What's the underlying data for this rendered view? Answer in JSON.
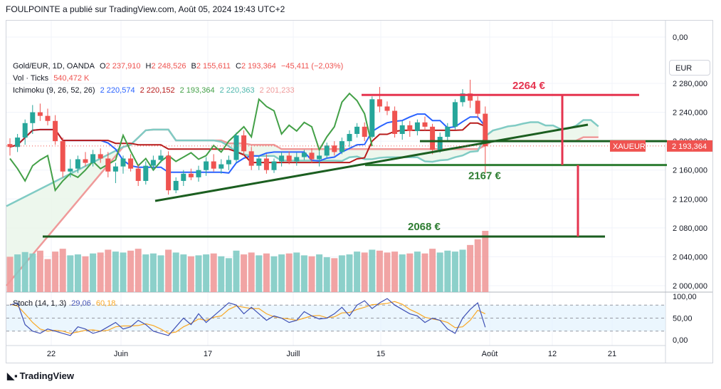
{
  "header": {
    "text": "FOULPOINTE a publié sur TradingView.com, Août 05, 2024 19:43 UTC+2"
  },
  "currency": "EUR",
  "footer": {
    "brand": "TradingView"
  },
  "legend": {
    "symbol": "Gold/EUR, 1D, OANDA",
    "o_label": "O",
    "o_value": "2 237,910",
    "h_label": "H",
    "h_value": "2 248,526",
    "b_label": "B",
    "b_value": "2 155,611",
    "c_label": "C",
    "c_value": "2 193,364",
    "change": "−45,411 (−2,03%)",
    "vol_label": "Vol · Ticks",
    "vol_value": "540,472 K",
    "ichi_label": "Ichimoku (9, 26, 52, 26)",
    "ichi_v1": "2 220,574",
    "ichi_v2": "2 220,152",
    "ichi_v3": "2 193,364",
    "ichi_v4": "2 220,363",
    "ichi_v5": "2 201,233",
    "stoch_label": "Stoch (14, 1, 3)",
    "stoch_k": "29,06",
    "stoch_d": "60,18"
  },
  "colors": {
    "up": "#26a69a",
    "down": "#ef5350",
    "tenkan": "#2962ff",
    "kijun": "#b71c1c",
    "chikou": "#43a047",
    "spanA": "#80cbc4",
    "spanB": "#ef9a9a",
    "level_red": "#e5344f",
    "level_green": "#1b5e20",
    "stoch_k": "#3f51b5",
    "stoch_d": "#f9a825"
  },
  "chart_data": {
    "type": "candlestick",
    "symbol": "Gold/EUR",
    "timeframe": "1D",
    "y_axis": {
      "ticks": [
        "0,00",
        "2 000,000",
        "2 040,000",
        "2 080,000",
        "2 120,000",
        "2 160,000",
        "2 200,000",
        "2 240,000",
        "2 280,000"
      ]
    },
    "x_axis": {
      "ticks": [
        "22",
        "Juin",
        "17",
        "Juill",
        "15",
        "Août",
        "12",
        "21"
      ]
    },
    "last_price": {
      "label": "XAUEUR",
      "value": "2 193,364"
    },
    "annotations": [
      {
        "text": "2264 €",
        "value": 2264
      },
      {
        "text": "2167 €",
        "value": 2167
      },
      {
        "text": "2068 €",
        "value": 2068
      }
    ],
    "stoch_axis": {
      "ticks": [
        "100,00",
        "50,00",
        "0,00"
      ],
      "bands": [
        80,
        20
      ]
    },
    "candles": [
      [
        2196,
        2204,
        2180,
        2192
      ],
      [
        2192,
        2210,
        2185,
        2205
      ],
      [
        2205,
        2230,
        2195,
        2225
      ],
      [
        2225,
        2250,
        2210,
        2240
      ],
      [
        2240,
        2252,
        2228,
        2235
      ],
      [
        2235,
        2245,
        2222,
        2228
      ],
      [
        2228,
        2236,
        2195,
        2200
      ],
      [
        2200,
        2205,
        2150,
        2158
      ],
      [
        2158,
        2175,
        2150,
        2162
      ],
      [
        2162,
        2180,
        2156,
        2175
      ],
      [
        2175,
        2185,
        2165,
        2170
      ],
      [
        2170,
        2188,
        2165,
        2182
      ],
      [
        2182,
        2190,
        2170,
        2176
      ],
      [
        2176,
        2185,
        2150,
        2158
      ],
      [
        2158,
        2170,
        2142,
        2165
      ],
      [
        2165,
        2180,
        2155,
        2176
      ],
      [
        2176,
        2182,
        2158,
        2162
      ],
      [
        2162,
        2168,
        2138,
        2145
      ],
      [
        2145,
        2172,
        2140,
        2166
      ],
      [
        2166,
        2180,
        2160,
        2174
      ],
      [
        2174,
        2188,
        2170,
        2180
      ],
      [
        2180,
        2186,
        2126,
        2132
      ],
      [
        2132,
        2150,
        2128,
        2145
      ],
      [
        2145,
        2160,
        2138,
        2155
      ],
      [
        2155,
        2162,
        2146,
        2150
      ],
      [
        2150,
        2166,
        2144,
        2160
      ],
      [
        2160,
        2178,
        2152,
        2172
      ],
      [
        2172,
        2182,
        2158,
        2162
      ],
      [
        2162,
        2175,
        2155,
        2168
      ],
      [
        2168,
        2180,
        2160,
        2174
      ],
      [
        2174,
        2212,
        2170,
        2208
      ],
      [
        2208,
        2215,
        2180,
        2186
      ],
      [
        2186,
        2192,
        2160,
        2166
      ],
      [
        2166,
        2180,
        2160,
        2176
      ],
      [
        2176,
        2182,
        2155,
        2160
      ],
      [
        2160,
        2176,
        2156,
        2172
      ],
      [
        2172,
        2185,
        2165,
        2180
      ],
      [
        2180,
        2186,
        2168,
        2172
      ],
      [
        2172,
        2184,
        2166,
        2178
      ],
      [
        2178,
        2188,
        2174,
        2184
      ],
      [
        2184,
        2190,
        2170,
        2175
      ],
      [
        2175,
        2186,
        2165,
        2180
      ],
      [
        2180,
        2198,
        2176,
        2194
      ],
      [
        2194,
        2200,
        2180,
        2185
      ],
      [
        2185,
        2205,
        2182,
        2200
      ],
      [
        2200,
        2215,
        2192,
        2210
      ],
      [
        2210,
        2225,
        2205,
        2220
      ],
      [
        2220,
        2226,
        2200,
        2206
      ],
      [
        2206,
        2262,
        2204,
        2258
      ],
      [
        2258,
        2275,
        2240,
        2248
      ],
      [
        2248,
        2255,
        2236,
        2242
      ],
      [
        2242,
        2248,
        2205,
        2210
      ],
      [
        2210,
        2228,
        2202,
        2222
      ],
      [
        2222,
        2228,
        2206,
        2214
      ],
      [
        2214,
        2230,
        2208,
        2226
      ],
      [
        2226,
        2234,
        2215,
        2220
      ],
      [
        2220,
        2224,
        2182,
        2188
      ],
      [
        2188,
        2212,
        2184,
        2206
      ],
      [
        2206,
        2225,
        2200,
        2220
      ],
      [
        2220,
        2258,
        2216,
        2254
      ],
      [
        2254,
        2272,
        2248,
        2266
      ],
      [
        2266,
        2285,
        2246,
        2256
      ],
      [
        2256,
        2262,
        2232,
        2238
      ],
      [
        2238,
        2248,
        2156,
        2193
      ]
    ],
    "volume": [
      75,
      80,
      85,
      82,
      88,
      70,
      86,
      92,
      78,
      80,
      76,
      82,
      84,
      90,
      86,
      84,
      88,
      92,
      80,
      82,
      78,
      90,
      84,
      80,
      76,
      78,
      80,
      82,
      76,
      72,
      88,
      80,
      84,
      78,
      82,
      76,
      80,
      82,
      84,
      78,
      76,
      80,
      74,
      72,
      78,
      80,
      86,
      84,
      90,
      88,
      84,
      86,
      80,
      82,
      86,
      82,
      92,
      84,
      88,
      86,
      90,
      100,
      112,
      130
    ],
    "stoch": {
      "k": [
        80,
        85,
        35,
        20,
        15,
        25,
        20,
        15,
        10,
        30,
        25,
        15,
        20,
        30,
        40,
        25,
        30,
        45,
        35,
        20,
        15,
        10,
        30,
        50,
        35,
        60,
        40,
        55,
        70,
        85,
        80,
        60,
        75,
        60,
        45,
        55,
        50,
        40,
        45,
        65,
        55,
        48,
        50,
        60,
        75,
        55,
        80,
        90,
        72,
        85,
        95,
        80,
        70,
        60,
        55,
        40,
        50,
        45,
        25,
        15,
        50,
        70,
        85,
        29
      ],
      "d": [
        82,
        78,
        60,
        40,
        25,
        20,
        22,
        20,
        15,
        18,
        22,
        23,
        20,
        22,
        30,
        32,
        32,
        33,
        37,
        33,
        25,
        15,
        18,
        30,
        38,
        48,
        45,
        52,
        55,
        70,
        78,
        75,
        72,
        72,
        60,
        53,
        50,
        48,
        45,
        50,
        55,
        56,
        51,
        53,
        62,
        63,
        70,
        75,
        81,
        82,
        84,
        88,
        82,
        70,
        62,
        52,
        48,
        45,
        40,
        28,
        30,
        45,
        68,
        60
      ]
    }
  }
}
